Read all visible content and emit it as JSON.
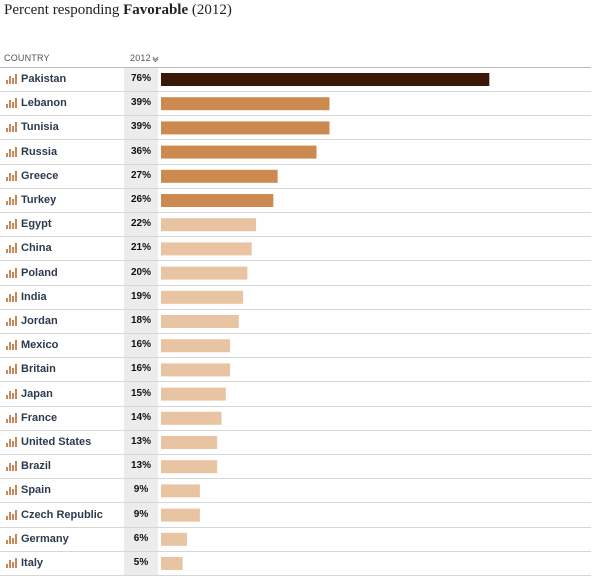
{
  "title": {
    "prefix": "Percent responding ",
    "bold": "Favorable",
    "suffix": " (2012)"
  },
  "header": {
    "country_label": "COUNTRY",
    "year_label": "2012",
    "sort_icon": "chevron-down-icon"
  },
  "colors": {
    "top": "#3a1808",
    "high": "#cd8a50",
    "low": "#e8c4a2",
    "icon": "#c8885c"
  },
  "chart_data": {
    "type": "bar",
    "orientation": "horizontal",
    "title": "Percent responding Favorable (2012)",
    "xlabel": "2012",
    "ylabel": "COUNTRY",
    "xlim": [
      0,
      100
    ],
    "series": [
      {
        "name": "2012",
        "unit": "%"
      }
    ],
    "categories": [
      "Pakistan",
      "Lebanon",
      "Tunisia",
      "Russia",
      "Greece",
      "Turkey",
      "Egypt",
      "China",
      "Poland",
      "India",
      "Jordan",
      "Mexico",
      "Britain",
      "Japan",
      "France",
      "United States",
      "Brazil",
      "Spain",
      "Czech Republic",
      "Germany",
      "Italy"
    ],
    "values": [
      76,
      39,
      39,
      36,
      27,
      26,
      22,
      21,
      20,
      19,
      18,
      16,
      16,
      15,
      14,
      13,
      13,
      9,
      9,
      6,
      5
    ],
    "labels": [
      "76%",
      "39%",
      "39%",
      "36%",
      "27%",
      "26%",
      "22%",
      "21%",
      "20%",
      "19%",
      "18%",
      "16%",
      "16%",
      "15%",
      "14%",
      "13%",
      "13%",
      "9%",
      "9%",
      "6%",
      "5%"
    ],
    "tiers": [
      "top",
      "high",
      "high",
      "high",
      "high",
      "high",
      "low",
      "low",
      "low",
      "low",
      "low",
      "low",
      "low",
      "low",
      "low",
      "low",
      "low",
      "low",
      "low",
      "low",
      "low"
    ]
  }
}
